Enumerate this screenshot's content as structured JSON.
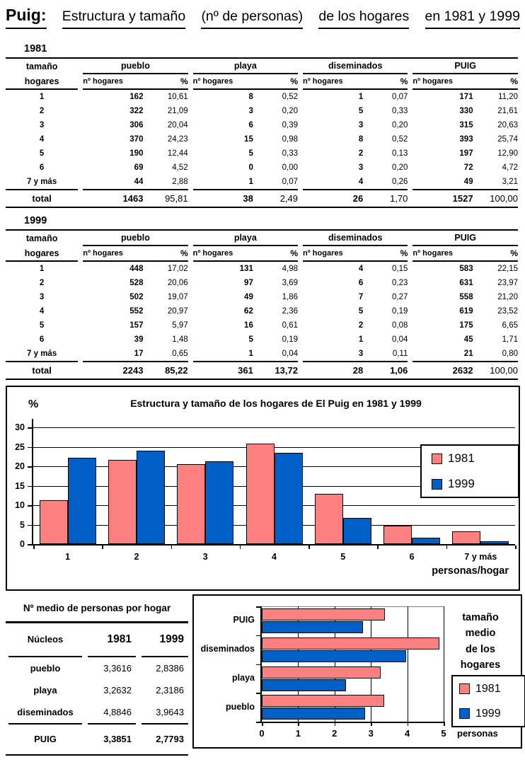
{
  "title": {
    "segments": [
      "Puig:",
      "Estructura y tamaño",
      "(nº de personas)",
      "de los hogares",
      "en 1981 y 1999"
    ]
  },
  "household_tables": [
    {
      "year": "1981",
      "corner": [
        "tamaño",
        "hogares"
      ],
      "groups": [
        "pueblo",
        "playa",
        "diseminados",
        "PUIG"
      ],
      "subheaders": [
        "nº hogares",
        "%"
      ],
      "rows": [
        [
          "1",
          "162",
          "10,61",
          "8",
          "0,52",
          "1",
          "0,07",
          "171",
          "11,20"
        ],
        [
          "2",
          "322",
          "21,09",
          "3",
          "0,20",
          "5",
          "0,33",
          "330",
          "21,61"
        ],
        [
          "3",
          "306",
          "20,04",
          "6",
          "0,39",
          "3",
          "0,20",
          "315",
          "20,63"
        ],
        [
          "4",
          "370",
          "24,23",
          "15",
          "0,98",
          "8",
          "0,52",
          "393",
          "25,74"
        ],
        [
          "5",
          "190",
          "12,44",
          "5",
          "0,33",
          "2",
          "0,13",
          "197",
          "12,90"
        ],
        [
          "6",
          "69",
          "4,52",
          "0",
          "0,00",
          "3",
          "0,20",
          "72",
          "4,72"
        ],
        [
          "7  y más",
          "44",
          "2,88",
          "1",
          "0,07",
          "4",
          "0,26",
          "49",
          "3,21"
        ]
      ],
      "total": [
        "total",
        "1463",
        "95,81",
        "38",
        "2,49",
        "26",
        "1,70",
        "1527",
        "100,00"
      ],
      "total_pct_bold": [
        false,
        false,
        false,
        false
      ]
    },
    {
      "year": "1999",
      "corner": [
        "tamaño",
        "hogares"
      ],
      "groups": [
        "pueblo",
        "playa",
        "diseminados",
        "PUIG"
      ],
      "subheaders": [
        "nº hogares",
        "%"
      ],
      "rows": [
        [
          "1",
          "448",
          "17,02",
          "131",
          "4,98",
          "4",
          "0,15",
          "583",
          "22,15"
        ],
        [
          "2",
          "528",
          "20,06",
          "97",
          "3,69",
          "6",
          "0,23",
          "631",
          "23,97"
        ],
        [
          "3",
          "502",
          "19,07",
          "49",
          "1,86",
          "7",
          "0,27",
          "558",
          "21,20"
        ],
        [
          "4",
          "552",
          "20,97",
          "62",
          "2,36",
          "5",
          "0,19",
          "619",
          "23,52"
        ],
        [
          "5",
          "157",
          "5,97",
          "16",
          "0,61",
          "2",
          "0,08",
          "175",
          "6,65"
        ],
        [
          "6",
          "39",
          "1,48",
          "5",
          "0,19",
          "1",
          "0,04",
          "45",
          "1,71"
        ],
        [
          "7  y más",
          "17",
          "0,65",
          "1",
          "0,04",
          "3",
          "0,11",
          "21",
          "0,80"
        ]
      ],
      "total": [
        "total",
        "2243",
        "85,22",
        "361",
        "13,72",
        "28",
        "1,06",
        "2632",
        "100,00"
      ],
      "total_pct_bold": [
        true,
        true,
        true,
        false
      ]
    }
  ],
  "chart_data": [
    {
      "type": "bar",
      "title": "Estructura y tamaño de los hogares de El Puig en 1981 y 1999",
      "ylabel": "%",
      "xlabel": "personas/hogar",
      "categories": [
        "1",
        "2",
        "3",
        "4",
        "5",
        "6",
        "7 y más"
      ],
      "series": [
        {
          "name": "1981",
          "color": "#FF8080",
          "values": [
            11.2,
            21.61,
            20.63,
            25.74,
            12.9,
            4.72,
            3.21
          ]
        },
        {
          "name": "1999",
          "color": "#0060C8",
          "values": [
            22.15,
            23.97,
            21.2,
            23.52,
            6.65,
            1.71,
            0.8
          ]
        }
      ],
      "ylim": [
        0,
        30
      ],
      "yticks": [
        0,
        5,
        10,
        15,
        20,
        25,
        30
      ],
      "grid": true,
      "legend_position": "inside-right"
    },
    {
      "type": "horizontal-bar",
      "side_title_lines": [
        "tamaño",
        "medio",
        "de los",
        "hogares"
      ],
      "xlabel": "personas",
      "categories": [
        "PUIG",
        "diseminados",
        "playa",
        "pueblo"
      ],
      "series": [
        {
          "name": "1981",
          "color": "#FF8080",
          "values": [
            3.3851,
            4.8846,
            3.2632,
            3.3616
          ]
        },
        {
          "name": "1999",
          "color": "#0060C8",
          "values": [
            2.7793,
            3.9643,
            2.3186,
            2.8386
          ]
        }
      ],
      "xlim": [
        0,
        5
      ],
      "xticks": [
        0,
        1,
        2,
        3,
        4,
        5
      ],
      "grid": true,
      "legend_position": "inside-right"
    }
  ],
  "avg_table": {
    "title": "Nº medio de personas por hogar",
    "headers": [
      "Núcleos",
      "1981",
      "1999"
    ],
    "rows": [
      [
        "pueblo",
        "3,3616",
        "2,8386"
      ],
      [
        "playa",
        "3,2632",
        "2,3186"
      ],
      [
        "diseminados",
        "4,8846",
        "3,9643"
      ]
    ],
    "total": [
      "PUIG",
      "3,3851",
      "2,7793"
    ]
  },
  "colors": {
    "series_1981": "#FF8080",
    "series_1999": "#0060C8"
  }
}
